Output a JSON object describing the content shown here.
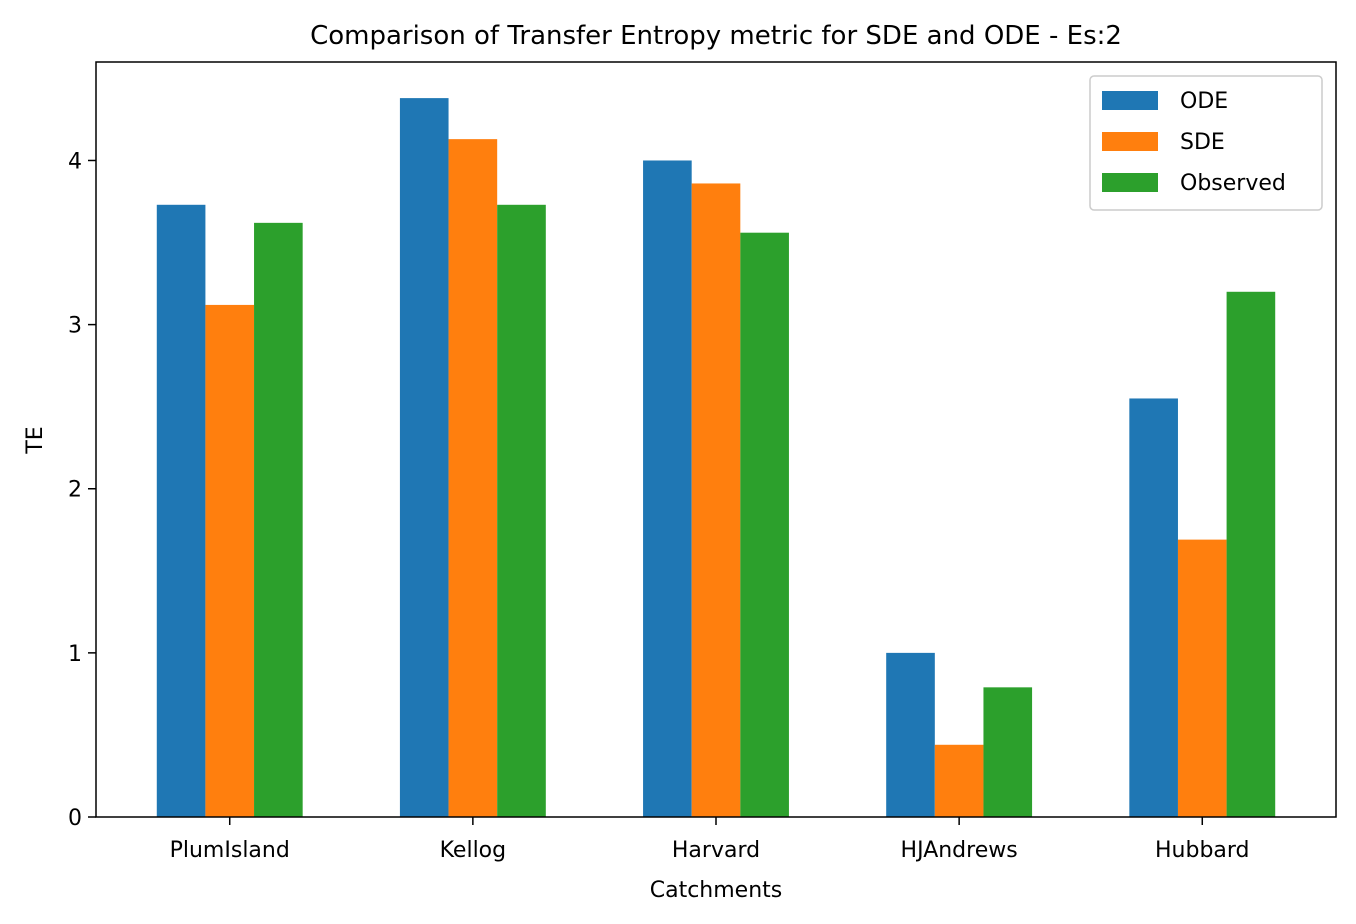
{
  "chart_data": {
    "type": "bar",
    "title": "Comparison of Transfer Entropy metric for SDE and ODE - Es:2",
    "xlabel": "Catchments",
    "ylabel": "TE",
    "categories": [
      "PlumIsland",
      "Kellog",
      "Harvard",
      "HJAndrews",
      "Hubbard"
    ],
    "series": [
      {
        "name": "ODE",
        "color": "#1f77b4",
        "values": [
          3.73,
          4.38,
          4.0,
          1.0,
          2.55
        ]
      },
      {
        "name": "SDE",
        "color": "#ff7f0e",
        "values": [
          3.12,
          4.13,
          3.86,
          0.44,
          1.69
        ]
      },
      {
        "name": "Observed",
        "color": "#2ca02c",
        "values": [
          3.62,
          3.73,
          3.56,
          0.79,
          3.2
        ]
      }
    ],
    "ylim": [
      0,
      4.6
    ],
    "yticks": [
      0,
      1,
      2,
      3,
      4
    ],
    "grid": false,
    "legend_position": "top-right"
  }
}
